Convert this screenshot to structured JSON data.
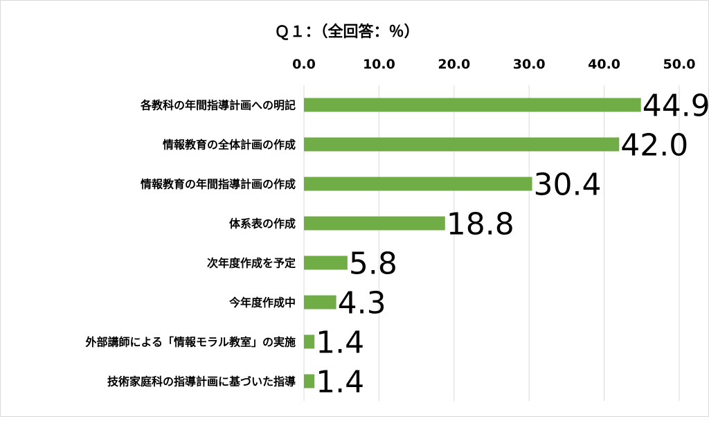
{
  "chart_data": {
    "type": "bar",
    "orientation": "horizontal",
    "title": "Ｑ１：（全回答：％）",
    "xlabel": "",
    "ylabel": "",
    "xlim": [
      0,
      50
    ],
    "ticks": [
      0,
      10,
      20,
      30,
      40,
      50
    ],
    "tick_labels": [
      "0.0",
      "10.0",
      "20.0",
      "30.0",
      "40.0",
      "50.0"
    ],
    "x_axis_position": "top",
    "grid": true,
    "legend": "none",
    "bar_color": "#70ad47",
    "grid_color": "#d9d9d9",
    "categories": [
      "各教科の年間指導計画への明記",
      "情報教育の全体計画の作成",
      "情報教育の年間指導計画の作成",
      "体系表の作成",
      "次年度作成を予定",
      "今年度作成中",
      "外部講師による「情報モラル教室」の実施",
      "技術家庭科の指導計画に基づいた指導"
    ],
    "values": [
      44.9,
      42.0,
      30.4,
      18.8,
      5.8,
      4.3,
      1.4,
      1.4
    ],
    "data_labels": [
      "44.9",
      "42.0",
      "30.4",
      "18.8",
      "5.8",
      "4.3",
      "1.4",
      "1.4"
    ]
  }
}
